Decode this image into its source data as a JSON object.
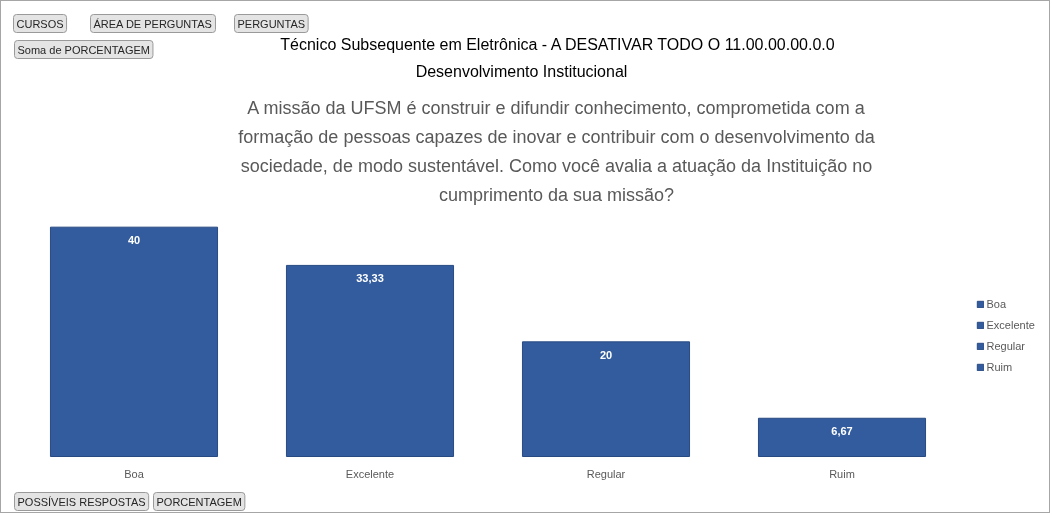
{
  "chart_data": {
    "type": "bar",
    "title": "Técnico Subsequente em Eletrônica - A DESATIVAR TODO O 11.00.00.00.0.0",
    "subtitle": "Desenvolvimento Institucional",
    "annotations": [
      "A missão da UFSM é construir e difundir conhecimento, comprometida com a formação de pessoas capazes de inovar e contribuir com o desenvolvimento da sociedade, de modo sustentável. Como você avalia a atuação da Instituição no cumprimento da sua missão?",
      "CURSOS",
      "ÁREA DE PERGUNTAS",
      "PERGUNTAS",
      "Soma de PORCENTAGEM",
      "POSSÍVEIS RESPOSTAS",
      "PORCENTAGEM"
    ],
    "categories": [
      "Boa",
      "Excelente",
      "Regular",
      "Ruim"
    ],
    "stacked": true,
    "series": [
      {
        "name": "Boa",
        "color": "#335c9e",
        "values": [
          40,
          null,
          null,
          null
        ],
        "value_labels": [
          "40",
          null,
          null,
          null
        ]
      },
      {
        "name": "Excelente",
        "color": "#335c9e",
        "values": [
          null,
          33.33,
          null,
          null
        ],
        "value_labels": [
          null,
          "33,33",
          null,
          null
        ]
      },
      {
        "name": "Regular",
        "color": "#335c9e",
        "values": [
          null,
          null,
          20,
          null
        ],
        "value_labels": [
          null,
          null,
          "20",
          null
        ]
      },
      {
        "name": "Ruim",
        "color": "#335c9e",
        "values": [
          null,
          null,
          null,
          6.67
        ],
        "value_labels": [
          null,
          null,
          null,
          "6,67"
        ]
      }
    ],
    "legend": "right"
  }
}
